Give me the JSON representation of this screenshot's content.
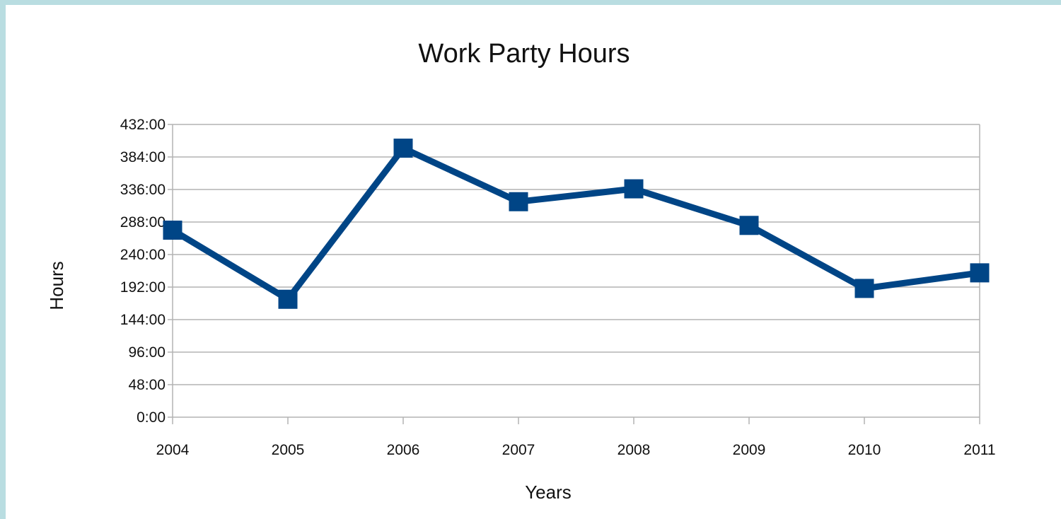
{
  "chart_data": {
    "type": "line",
    "title": "Work Party Hours",
    "xlabel": "Years",
    "ylabel": "Hours",
    "categories": [
      "2004",
      "2005",
      "2006",
      "2007",
      "2008",
      "2009",
      "2010",
      "2011"
    ],
    "series": [
      {
        "values": [
          276,
          174,
          397,
          318,
          337,
          283,
          190,
          213
        ],
        "color": "#004586",
        "marker": "square"
      }
    ],
    "ylim": [
      0,
      432
    ],
    "yticks": [
      0,
      48,
      96,
      144,
      192,
      240,
      288,
      336,
      384,
      432
    ],
    "ytick_labels": [
      "0:00",
      "48:00",
      "96:00",
      "144:00",
      "192:00",
      "240:00",
      "288:00",
      "336:00",
      "384:00",
      "432:00"
    ],
    "value_unit": "hours (h:mm)",
    "grid": "horizontal",
    "legend": "none"
  },
  "colors": {
    "page_background": "#b9dde1",
    "plot_background": "#ffffff",
    "grid": "#b3b3b3",
    "axis": "#b3b3b3"
  }
}
